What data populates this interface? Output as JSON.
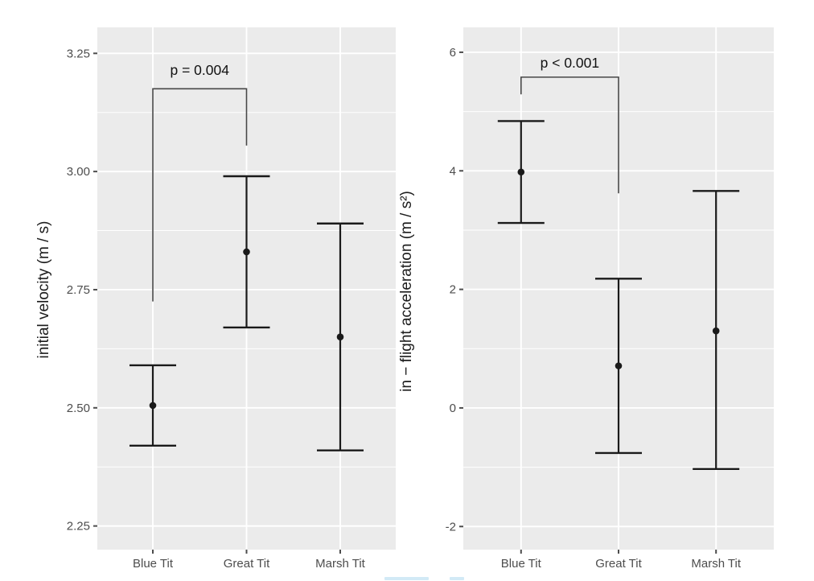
{
  "figure": {
    "title": "",
    "background_color": "#ffffff",
    "panel_background_color": "#ebebeb",
    "gridline_color": "#ffffff",
    "data_color": "#1a1a1a",
    "tick_color": "#4d4d4d",
    "bracket_color": "#474747"
  },
  "categories": [
    "Blue Tit",
    "Great Tit",
    "Marsh Tit"
  ],
  "chart_data": [
    {
      "type": "pointrange",
      "title": "",
      "xlabel": "",
      "ylabel": "initial velocity (m / s)",
      "categories": [
        "Blue Tit",
        "Great Tit",
        "Marsh Tit"
      ],
      "series": [
        {
          "name": "estimate",
          "means": [
            2.505,
            2.83,
            2.65
          ],
          "ci_low": [
            2.42,
            2.67,
            2.41
          ],
          "ci_high": [
            2.59,
            2.99,
            2.89
          ]
        }
      ],
      "ylim": [
        2.2,
        3.305
      ],
      "yticks": [
        2.25,
        2.5,
        2.75,
        3.0,
        3.25
      ],
      "ytick_labels": [
        "2.25",
        "2.50",
        "2.75",
        "3.00",
        "3.25"
      ],
      "yticks_minor": [
        2.375,
        2.625,
        2.875,
        3.125
      ],
      "grid": true,
      "legend": null,
      "annotation": {
        "label": "p = 0.004",
        "x1": 0,
        "x2": 1,
        "bar_y": 3.175,
        "x1_drop_y": 2.725,
        "x2_drop_y": 3.055,
        "label_y": 3.215
      }
    },
    {
      "type": "pointrange",
      "title": "",
      "xlabel": "",
      "ylabel": "in − flight acceleration (m / s²)",
      "categories": [
        "Blue Tit",
        "Great Tit",
        "Marsh Tit"
      ],
      "series": [
        {
          "name": "estimate",
          "means": [
            3.98,
            0.71,
            1.3
          ],
          "ci_low": [
            3.12,
            -0.76,
            -1.03
          ],
          "ci_high": [
            4.84,
            2.18,
            3.66
          ]
        }
      ],
      "ylim": [
        -2.39,
        6.42
      ],
      "yticks": [
        -2,
        0,
        2,
        4,
        6
      ],
      "ytick_labels": [
        "-2",
        "0",
        "2",
        "4",
        "6"
      ],
      "yticks_minor": [
        -1,
        1,
        3,
        5
      ],
      "grid": true,
      "legend": null,
      "annotation": {
        "label": "p < 0.001",
        "x1": 0,
        "x2": 1,
        "bar_y": 5.58,
        "x1_drop_y": 5.29,
        "x2_drop_y": 3.62,
        "label_y": 5.82
      }
    }
  ]
}
